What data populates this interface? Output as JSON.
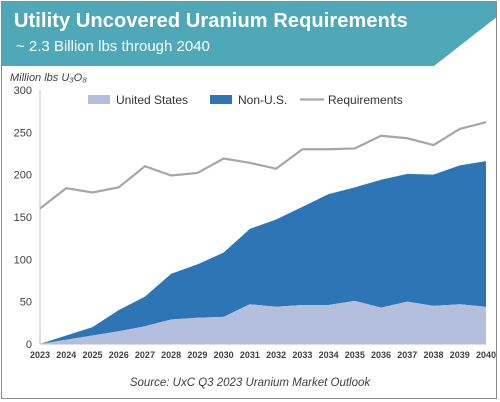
{
  "header": {
    "title": "Utility Uncovered Uranium Requirements",
    "subtitle": "~ 2.3 Billion lbs through 2040",
    "banner_color": "#4fa8b8"
  },
  "footer": {
    "source": "Source: UxC Q3 2023 Uranium Market Outlook"
  },
  "chart_data": {
    "type": "area",
    "ylabel": "Million lbs U₃O₈",
    "ylim": [
      0,
      300
    ],
    "yticks": [
      0,
      50,
      100,
      150,
      200,
      250,
      300
    ],
    "grid": false,
    "legend_position": "top",
    "categories": [
      "2023",
      "2024",
      "2025",
      "2026",
      "2027",
      "2028",
      "2029",
      "2030",
      "2031",
      "2032",
      "2033",
      "2034",
      "2035",
      "2036",
      "2037",
      "2038",
      "2039",
      "2040"
    ],
    "series": [
      {
        "name": "United States",
        "kind": "area",
        "color": "#b3bfdc",
        "values": [
          0,
          5,
          10,
          15,
          21,
          29,
          31,
          32,
          47,
          44,
          46,
          46,
          51,
          43,
          50,
          45,
          47,
          44
        ]
      },
      {
        "name": "Non-U.S.",
        "kind": "area",
        "color": "#2e75b6",
        "values": [
          0,
          5,
          10,
          25,
          35,
          54,
          63,
          76,
          89,
          103,
          116,
          131,
          134,
          151,
          151,
          155,
          164,
          172
        ]
      },
      {
        "name": "Requirements",
        "kind": "line",
        "color": "#a6a6a6",
        "values": [
          160,
          184,
          179,
          185,
          210,
          199,
          202,
          219,
          214,
          207,
          230,
          230,
          231,
          246,
          243,
          235,
          254,
          262
        ]
      }
    ]
  }
}
